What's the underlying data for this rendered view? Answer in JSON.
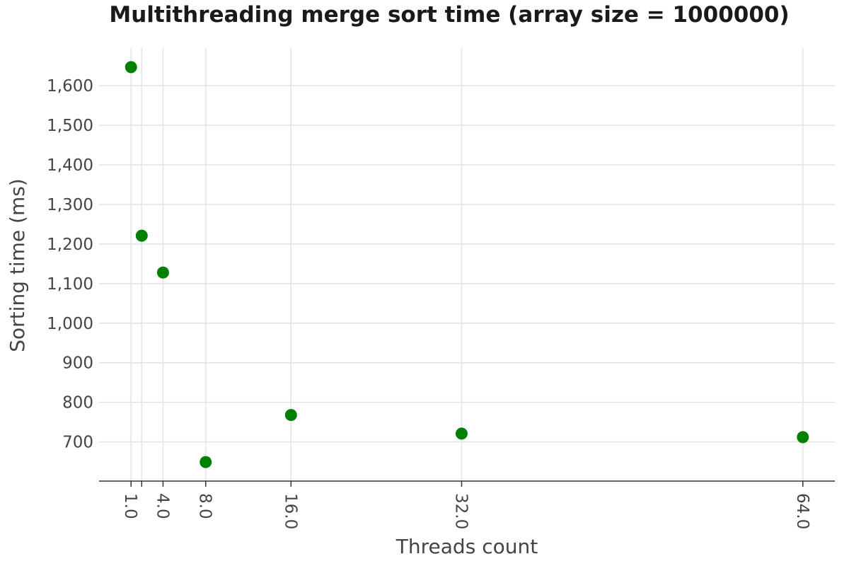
{
  "chart_data": {
    "type": "scatter",
    "title": "Multithreading merge sort time (array size = 1000000)",
    "xlabel": "Threads count",
    "ylabel": "Sorting time (ms)",
    "x": [
      1,
      2,
      4,
      8,
      16,
      32,
      64
    ],
    "y": [
      1647,
      1221,
      1128,
      649,
      768,
      721,
      712
    ],
    "x_ticks": [
      1,
      2,
      4,
      8,
      16,
      32,
      64
    ],
    "x_tick_labels": [
      "1.0",
      "",
      "4.0",
      "8.0",
      "16.0",
      "32.0",
      "64.0"
    ],
    "y_ticks": [
      700,
      800,
      900,
      1000,
      1100,
      1200,
      1300,
      1400,
      1500,
      1600
    ],
    "y_tick_labels": [
      "700",
      "800",
      "900",
      "1,000",
      "1,100",
      "1,200",
      "1,300",
      "1,400",
      "1,500",
      "1,600"
    ],
    "xlim": [
      -2,
      67
    ],
    "ylim": [
      601,
      1695
    ],
    "grid": true,
    "x_tick_label_rotation": "vertical",
    "marker_color": "#008000",
    "grid_color": "#e3e3e3"
  }
}
